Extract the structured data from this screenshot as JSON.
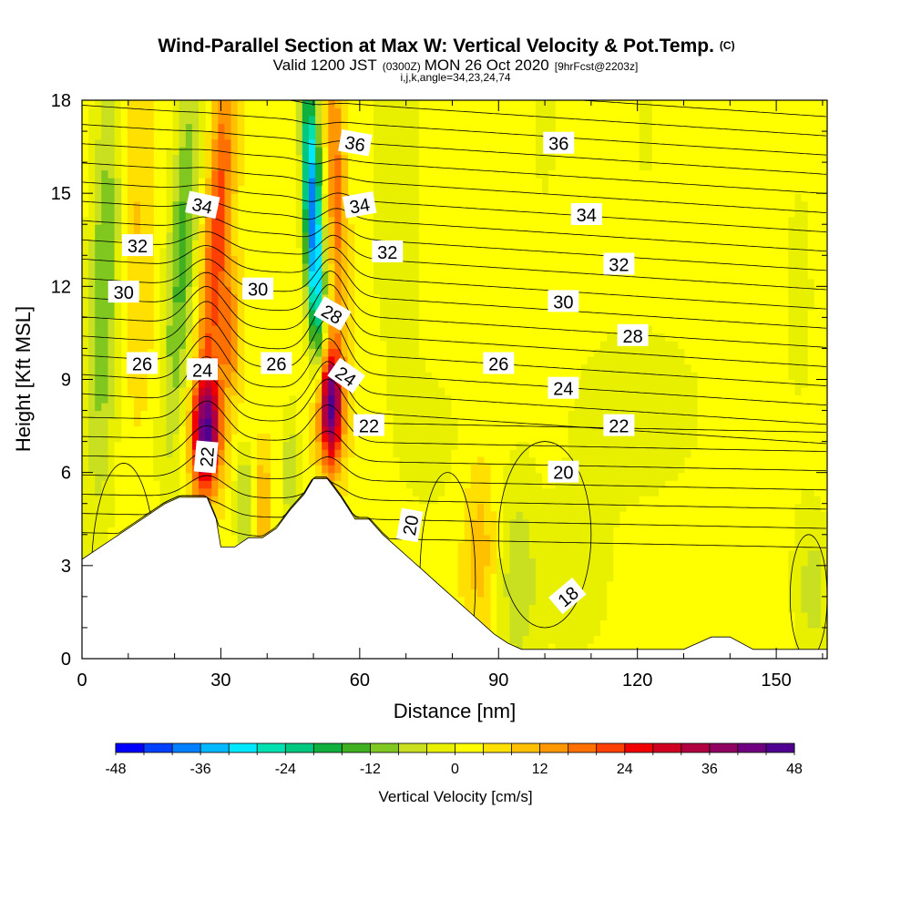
{
  "chart_data": {
    "type": "heatmap",
    "title": "Wind-Parallel Section at Max W: Vertical Velocity & Pot.Temp.",
    "title_mark": "(C)",
    "subtitle_prefix": "Valid 1200 JST",
    "subtitle_utc": "(0300Z)",
    "subtitle_date": "MON 26 Oct 2020",
    "subtitle_fcst": "[9hrFcst@2203z]",
    "subtitle2": "i,j,k,angle=34,23,24,74",
    "xlabel": "Distance [nm]",
    "ylabel": "Height [Kft MSL]",
    "xlim": [
      0,
      161
    ],
    "ylim": [
      0,
      18
    ],
    "x_ticks": [
      0,
      30,
      60,
      90,
      120,
      150
    ],
    "y_ticks": [
      0,
      3,
      6,
      9,
      12,
      15,
      18
    ],
    "colorbar": {
      "label": "Vertical Velocity [cm/s]",
      "ticks": [
        -48,
        -36,
        -24,
        -12,
        0,
        12,
        24,
        36,
        48
      ],
      "colors": [
        "#0000ff",
        "#0040ff",
        "#0080ff",
        "#00b8ff",
        "#00e8ff",
        "#00e0b0",
        "#00c880",
        "#10b040",
        "#40b020",
        "#80c820",
        "#c8e020",
        "#e8f000",
        "#ffff00",
        "#ffe000",
        "#ffc000",
        "#ff9800",
        "#ff7000",
        "#ff4000",
        "#f00000",
        "#d00020",
        "#b00040",
        "#900060",
        "#700080",
        "#500090"
      ]
    },
    "terrain_profile": {
      "x": [
        0,
        3,
        6,
        9,
        12,
        15,
        18,
        21,
        24,
        27,
        29,
        30,
        33,
        36,
        39,
        42,
        45,
        48,
        50,
        53,
        56,
        59,
        62,
        65,
        68,
        71,
        74,
        77,
        80,
        83,
        86,
        89,
        92,
        95,
        100,
        110,
        130,
        136,
        140,
        145,
        161
      ],
      "height": [
        3.2,
        3.5,
        3.8,
        4.1,
        4.4,
        4.7,
        5.0,
        5.2,
        5.2,
        5.2,
        4.5,
        3.6,
        3.6,
        3.9,
        3.9,
        4.2,
        4.8,
        5.3,
        5.8,
        5.8,
        5.2,
        4.5,
        4.5,
        4.0,
        3.6,
        3.2,
        2.8,
        2.4,
        2.0,
        1.6,
        1.2,
        0.8,
        0.5,
        0.3,
        0.3,
        0.3,
        0.3,
        0.7,
        0.7,
        0.3,
        0.3
      ]
    },
    "vertical_velocity_features": [
      {
        "kind": "updraft",
        "x_center": 27,
        "height_range": [
          5,
          9
        ],
        "peak_cms": 38
      },
      {
        "kind": "updraft",
        "x_center": 53,
        "height_range": [
          6,
          10.5
        ],
        "peak_cms": 46
      },
      {
        "kind": "updraft",
        "x_center": 28,
        "height_range": [
          9,
          18
        ],
        "peak_cms": 24
      },
      {
        "kind": "downdraft",
        "x_center": 51,
        "height_range": [
          10,
          18
        ],
        "peak_cms": -40
      },
      {
        "kind": "downdraft",
        "x_center": 20,
        "height_range": [
          9,
          18
        ],
        "peak_cms": -16
      },
      {
        "kind": "downdraft",
        "x_center": 4,
        "height_range": [
          7,
          18
        ],
        "peak_cms": -14
      }
    ],
    "potential_temperature_labels": [
      {
        "text": "36",
        "x": 59,
        "y": 16.6,
        "angle": 10
      },
      {
        "text": "36",
        "x": 103,
        "y": 16.6,
        "angle": 0
      },
      {
        "text": "34",
        "x": 26,
        "y": 14.6,
        "angle": 12
      },
      {
        "text": "34",
        "x": 60,
        "y": 14.6,
        "angle": -10
      },
      {
        "text": "34",
        "x": 109,
        "y": 14.3,
        "angle": 0
      },
      {
        "text": "32",
        "x": 12,
        "y": 13.3,
        "angle": 0
      },
      {
        "text": "32",
        "x": 66,
        "y": 13.1,
        "angle": 0
      },
      {
        "text": "32",
        "x": 116,
        "y": 12.7,
        "angle": 0
      },
      {
        "text": "30",
        "x": 9,
        "y": 11.8,
        "angle": 0
      },
      {
        "text": "30",
        "x": 38,
        "y": 11.9,
        "angle": 0
      },
      {
        "text": "30",
        "x": 104,
        "y": 11.5,
        "angle": 0
      },
      {
        "text": "28",
        "x": 54,
        "y": 11.1,
        "angle": 30
      },
      {
        "text": "28",
        "x": 119,
        "y": 10.4,
        "angle": 0
      },
      {
        "text": "26",
        "x": 13,
        "y": 9.5,
        "angle": 0
      },
      {
        "text": "26",
        "x": 42,
        "y": 9.5,
        "angle": 0
      },
      {
        "text": "26",
        "x": 90,
        "y": 9.5,
        "angle": 0
      },
      {
        "text": "24",
        "x": 26,
        "y": 9.3,
        "angle": 0
      },
      {
        "text": "24",
        "x": 57,
        "y": 9.1,
        "angle": 35
      },
      {
        "text": "24",
        "x": 104,
        "y": 8.7,
        "angle": 0
      },
      {
        "text": "22",
        "x": 62,
        "y": 7.5,
        "angle": 0
      },
      {
        "text": "22",
        "x": 116,
        "y": 7.5,
        "angle": 0
      },
      {
        "text": "22",
        "x": 27,
        "y": 6.5,
        "angle": -85
      },
      {
        "text": "20",
        "x": 104,
        "y": 6.0,
        "angle": 0
      },
      {
        "text": "20",
        "x": 71,
        "y": 4.3,
        "angle": -80
      },
      {
        "text": "18",
        "x": 105,
        "y": 2.0,
        "angle": -40
      }
    ]
  }
}
